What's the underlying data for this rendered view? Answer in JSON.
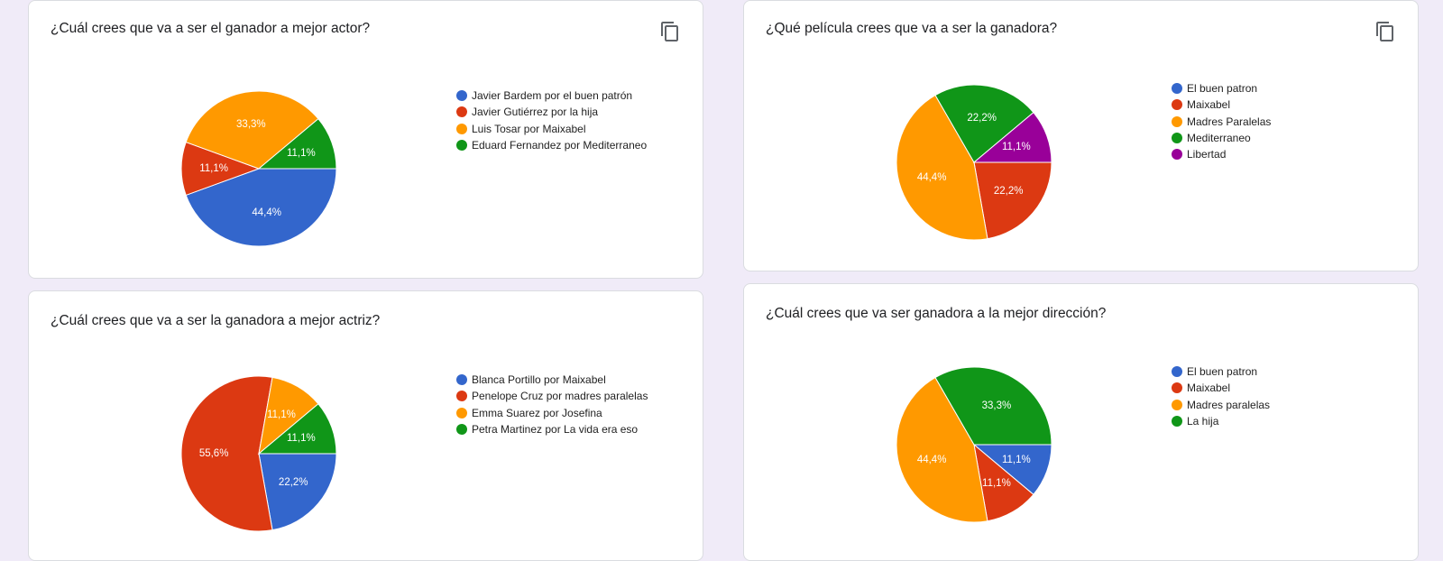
{
  "copy_icon": "copy-content-icon",
  "chart_data": [
    {
      "type": "pie",
      "title": "¿Cuál crees que va a ser el ganador a mejor actor?",
      "slices": [
        {
          "label": "Javier Bardem por el buen patrón",
          "value": 44.4,
          "value_label": "44,4%",
          "color": "#3366cc"
        },
        {
          "label": "Javier Gutiérrez por la hija",
          "value": 11.1,
          "value_label": "11,1%",
          "color": "#dc3912"
        },
        {
          "label": "Luis Tosar por Maixabel",
          "value": 33.3,
          "value_label": "33,3%",
          "color": "#ff9900"
        },
        {
          "label": "Eduard Fernandez por Mediterraneo",
          "value": 11.1,
          "value_label": "11,1%",
          "color": "#109618"
        }
      ],
      "legend_position": "right"
    },
    {
      "type": "pie",
      "title": "¿Qué película crees que va a ser la ganadora?",
      "slices": [
        {
          "label": "El buen patron",
          "value": 0,
          "value_label": "",
          "color": "#3366cc"
        },
        {
          "label": "Maixabel",
          "value": 22.2,
          "value_label": "22,2%",
          "color": "#dc3912"
        },
        {
          "label": "Madres Paralelas",
          "value": 44.4,
          "value_label": "44,4%",
          "color": "#ff9900"
        },
        {
          "label": "Mediterraneo",
          "value": 22.2,
          "value_label": "22,2%",
          "color": "#109618"
        },
        {
          "label": "Libertad",
          "value": 11.1,
          "value_label": "11,1%",
          "color": "#990099"
        }
      ],
      "legend_position": "right"
    },
    {
      "type": "pie",
      "title": "¿Cuál crees que va a ser la ganadora a mejor actriz?",
      "slices": [
        {
          "label": "Blanca Portillo por Maixabel",
          "value": 22.2,
          "value_label": "22,2%",
          "color": "#3366cc"
        },
        {
          "label": "Penelope Cruz por madres paralelas",
          "value": 55.6,
          "value_label": "55,6%",
          "color": "#dc3912"
        },
        {
          "label": "Emma Suarez por Josefina",
          "value": 11.1,
          "value_label": "11,1%",
          "color": "#ff9900"
        },
        {
          "label": "Petra Martinez por La vida era eso",
          "value": 11.1,
          "value_label": "11,1%",
          "color": "#109618"
        }
      ],
      "legend_position": "right"
    },
    {
      "type": "pie",
      "title": "¿Cuál crees que va ser ganadora a la mejor dirección?",
      "slices": [
        {
          "label": "El buen patron",
          "value": 11.1,
          "value_label": "11,1%",
          "color": "#3366cc"
        },
        {
          "label": "Maixabel",
          "value": 11.1,
          "value_label": "11,1%",
          "color": "#dc3912"
        },
        {
          "label": "Madres paralelas",
          "value": 44.4,
          "value_label": "44,4%",
          "color": "#ff9900"
        },
        {
          "label": "La hija",
          "value": 33.3,
          "value_label": "33,3%",
          "color": "#109618"
        }
      ],
      "legend_position": "right"
    }
  ]
}
